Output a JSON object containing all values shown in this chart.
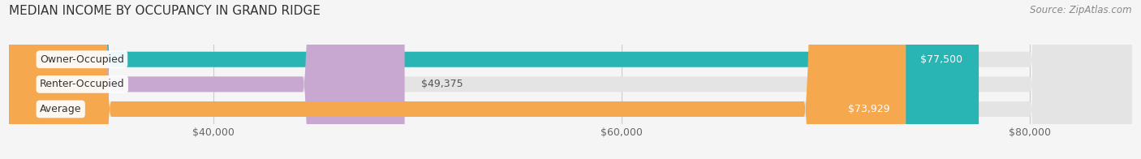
{
  "title": "MEDIAN INCOME BY OCCUPANCY IN GRAND RIDGE",
  "source": "Source: ZipAtlas.com",
  "categories": [
    "Owner-Occupied",
    "Renter-Occupied",
    "Average"
  ],
  "values": [
    77500,
    49375,
    73929
  ],
  "bar_colors": [
    "#2ab5b5",
    "#c8a8d0",
    "#f5a84e"
  ],
  "value_labels": [
    "$77,500",
    "$49,375",
    "$73,929"
  ],
  "xlim": [
    30000,
    85000
  ],
  "xticks": [
    40000,
    60000,
    80000
  ],
  "xtick_labels": [
    "$40,000",
    "$60,000",
    "$80,000"
  ],
  "background_color": "#f5f5f5",
  "bar_background_color": "#e4e4e4",
  "title_fontsize": 11,
  "source_fontsize": 8.5,
  "label_fontsize": 9,
  "tick_fontsize": 9
}
